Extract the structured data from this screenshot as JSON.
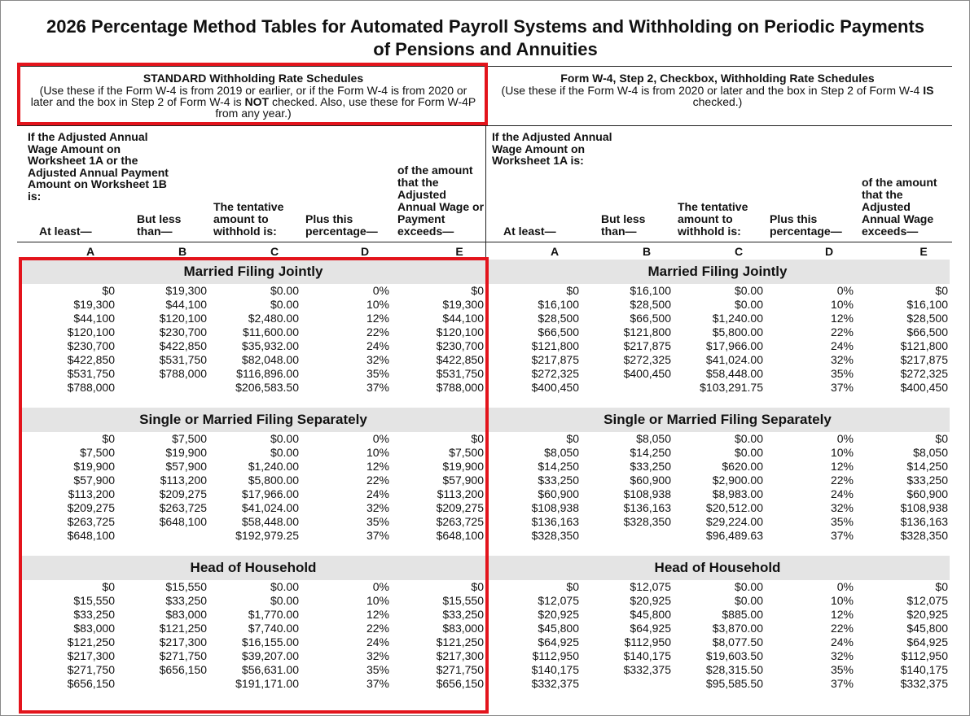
{
  "title": "2026 Percentage Method Tables for Automated Payroll Systems and Withholding on Periodic Payments of Pensions and Annuities",
  "panels": [
    {
      "heading": "STANDARD Withholding Rate Schedules",
      "note": [
        "(Use these if the Form W-4 is from 2019 or earlier, or if the Form W-4 is from 2020 or later and the box in Step 2 of Form W-4 is ",
        "NOT",
        " checked. Also, use these for Form W-4P from any year.)"
      ],
      "intro": "If the Adjusted Annual Wage Amount on Worksheet 1A or the Adjusted Annual Payment Amount on Worksheet 1B is:",
      "columns": [
        "At least—",
        "But less than—",
        "The tentative amount to withhold is:",
        "Plus this percentage—",
        "of the amount that the Adjusted Annual Wage or Payment exceeds—"
      ],
      "letters": [
        "A",
        "B",
        "C",
        "D",
        "E"
      ],
      "sections": [
        {
          "title": "Married Filing Jointly",
          "rows": [
            [
              "$0",
              "$19,300",
              "$0.00",
              "0%",
              "$0"
            ],
            [
              "$19,300",
              "$44,100",
              "$0.00",
              "10%",
              "$19,300"
            ],
            [
              "$44,100",
              "$120,100",
              "$2,480.00",
              "12%",
              "$44,100"
            ],
            [
              "$120,100",
              "$230,700",
              "$11,600.00",
              "22%",
              "$120,100"
            ],
            [
              "$230,700",
              "$422,850",
              "$35,932.00",
              "24%",
              "$230,700"
            ],
            [
              "$422,850",
              "$531,750",
              "$82,048.00",
              "32%",
              "$422,850"
            ],
            [
              "$531,750",
              "$788,000",
              "$116,896.00",
              "35%",
              "$531,750"
            ],
            [
              "$788,000",
              null,
              "$206,583.50",
              "37%",
              "$788,000"
            ]
          ]
        },
        {
          "title": "Single or Married Filing Separately",
          "rows": [
            [
              "$0",
              "$7,500",
              "$0.00",
              "0%",
              "$0"
            ],
            [
              "$7,500",
              "$19,900",
              "$0.00",
              "10%",
              "$7,500"
            ],
            [
              "$19,900",
              "$57,900",
              "$1,240.00",
              "12%",
              "$19,900"
            ],
            [
              "$57,900",
              "$113,200",
              "$5,800.00",
              "22%",
              "$57,900"
            ],
            [
              "$113,200",
              "$209,275",
              "$17,966.00",
              "24%",
              "$113,200"
            ],
            [
              "$209,275",
              "$263,725",
              "$41,024.00",
              "32%",
              "$209,275"
            ],
            [
              "$263,725",
              "$648,100",
              "$58,448.00",
              "35%",
              "$263,725"
            ],
            [
              "$648,100",
              null,
              "$192,979.25",
              "37%",
              "$648,100"
            ]
          ]
        },
        {
          "title": "Head of Household",
          "rows": [
            [
              "$0",
              "$15,550",
              "$0.00",
              "0%",
              "$0"
            ],
            [
              "$15,550",
              "$33,250",
              "$0.00",
              "10%",
              "$15,550"
            ],
            [
              "$33,250",
              "$83,000",
              "$1,770.00",
              "12%",
              "$33,250"
            ],
            [
              "$83,000",
              "$121,250",
              "$7,740.00",
              "22%",
              "$83,000"
            ],
            [
              "$121,250",
              "$217,300",
              "$16,155.00",
              "24%",
              "$121,250"
            ],
            [
              "$217,300",
              "$271,750",
              "$39,207.00",
              "32%",
              "$217,300"
            ],
            [
              "$271,750",
              "$656,150",
              "$56,631.00",
              "35%",
              "$271,750"
            ],
            [
              "$656,150",
              null,
              "$191,171.00",
              "37%",
              "$656,150"
            ]
          ]
        }
      ]
    },
    {
      "heading": "Form W-4, Step 2, Checkbox, Withholding Rate Schedules",
      "note": [
        "(Use these if the Form W-4 is from 2020 or later and the box in Step 2 of Form W-4 ",
        "IS",
        " checked.)"
      ],
      "intro": "If the Adjusted Annual Wage Amount on Worksheet 1A is:",
      "columns": [
        "At least—",
        "But less than—",
        "The tentative amount to withhold is:",
        "Plus this percentage—",
        "of the amount that the Adjusted Annual Wage exceeds—"
      ],
      "letters": [
        "A",
        "B",
        "C",
        "D",
        "E"
      ],
      "sections": [
        {
          "title": "Married Filing Jointly",
          "rows": [
            [
              "$0",
              "$16,100",
              "$0.00",
              "0%",
              "$0"
            ],
            [
              "$16,100",
              "$28,500",
              "$0.00",
              "10%",
              "$16,100"
            ],
            [
              "$28,500",
              "$66,500",
              "$1,240.00",
              "12%",
              "$28,500"
            ],
            [
              "$66,500",
              "$121,800",
              "$5,800.00",
              "22%",
              "$66,500"
            ],
            [
              "$121,800",
              "$217,875",
              "$17,966.00",
              "24%",
              "$121,800"
            ],
            [
              "$217,875",
              "$272,325",
              "$41,024.00",
              "32%",
              "$217,875"
            ],
            [
              "$272,325",
              "$400,450",
              "$58,448.00",
              "35%",
              "$272,325"
            ],
            [
              "$400,450",
              null,
              "$103,291.75",
              "37%",
              "$400,450"
            ]
          ]
        },
        {
          "title": "Single or Married Filing Separately",
          "rows": [
            [
              "$0",
              "$8,050",
              "$0.00",
              "0%",
              "$0"
            ],
            [
              "$8,050",
              "$14,250",
              "$0.00",
              "10%",
              "$8,050"
            ],
            [
              "$14,250",
              "$33,250",
              "$620.00",
              "12%",
              "$14,250"
            ],
            [
              "$33,250",
              "$60,900",
              "$2,900.00",
              "22%",
              "$33,250"
            ],
            [
              "$60,900",
              "$108,938",
              "$8,983.00",
              "24%",
              "$60,900"
            ],
            [
              "$108,938",
              "$136,163",
              "$20,512.00",
              "32%",
              "$108,938"
            ],
            [
              "$136,163",
              "$328,350",
              "$29,224.00",
              "35%",
              "$136,163"
            ],
            [
              "$328,350",
              null,
              "$96,489.63",
              "37%",
              "$328,350"
            ]
          ]
        },
        {
          "title": "Head of Household",
          "rows": [
            [
              "$0",
              "$12,075",
              "$0.00",
              "0%",
              "$0"
            ],
            [
              "$12,075",
              "$20,925",
              "$0.00",
              "10%",
              "$12,075"
            ],
            [
              "$20,925",
              "$45,800",
              "$885.00",
              "12%",
              "$20,925"
            ],
            [
              "$45,800",
              "$64,925",
              "$3,870.00",
              "22%",
              "$45,800"
            ],
            [
              "$64,925",
              "$112,950",
              "$8,077.50",
              "24%",
              "$64,925"
            ],
            [
              "$112,950",
              "$140,175",
              "$19,603.50",
              "32%",
              "$112,950"
            ],
            [
              "$140,175",
              "$332,375",
              "$28,315.50",
              "35%",
              "$140,175"
            ],
            [
              "$332,375",
              null,
              "$95,585.50",
              "37%",
              "$332,375"
            ]
          ]
        }
      ]
    }
  ]
}
